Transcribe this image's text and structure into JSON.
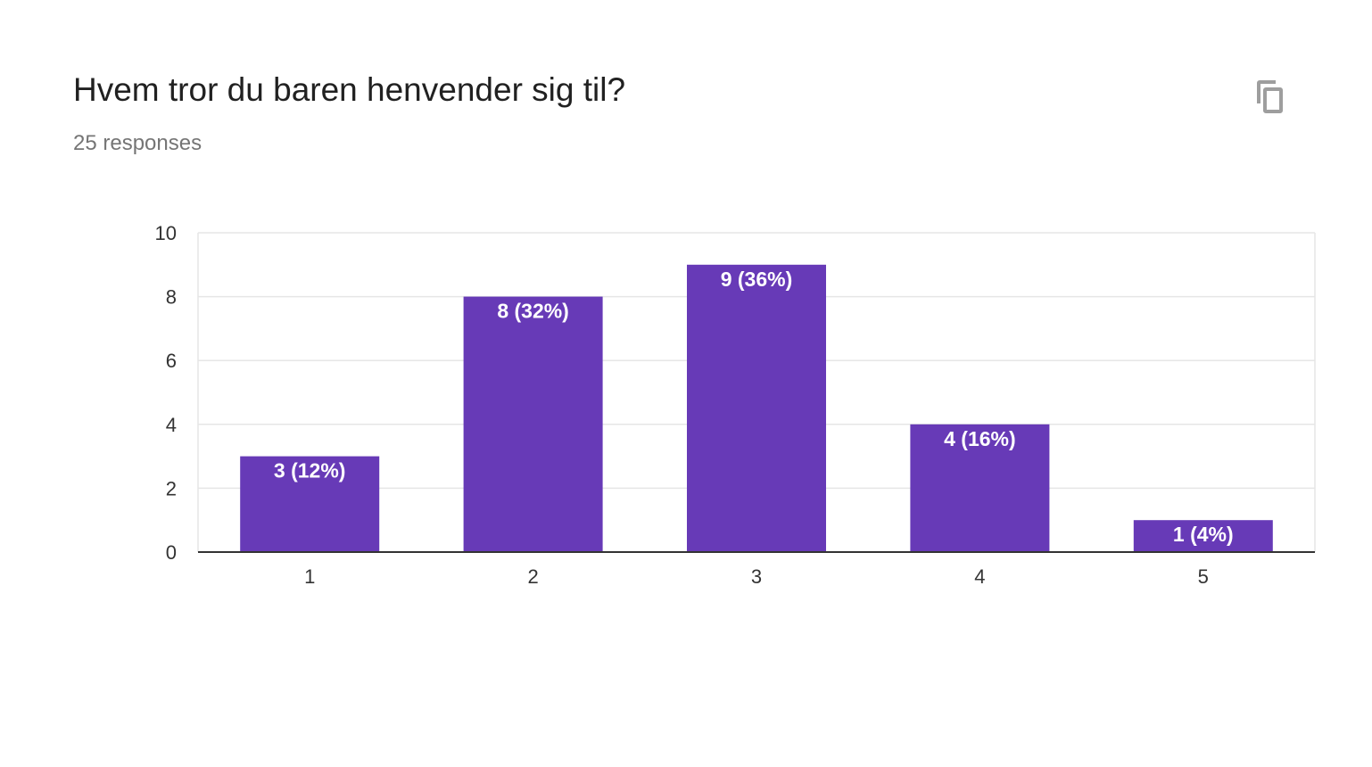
{
  "header": {
    "title": "Hvem tror du baren henvender sig til?",
    "responses": "25 responses"
  },
  "toolbar": {
    "copy_icon": "copy-icon"
  },
  "colors": {
    "bar": "#673ab7",
    "grid": "#e6e6e6",
    "axis": "#333333"
  },
  "chart_data": {
    "type": "bar",
    "categories": [
      "1",
      "2",
      "3",
      "4",
      "5"
    ],
    "values": [
      3,
      8,
      9,
      4,
      1
    ],
    "data_labels": [
      "3 (12%)",
      "8 (32%)",
      "9 (36%)",
      "4 (16%)",
      "1 (4%)"
    ],
    "ylim": [
      0,
      10
    ],
    "yticks": [
      0,
      2,
      4,
      6,
      8,
      10
    ],
    "grid": true,
    "legend": "none"
  }
}
